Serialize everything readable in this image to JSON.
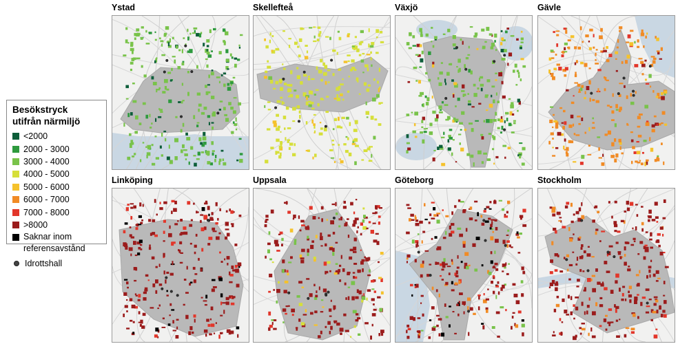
{
  "legend": {
    "title_line1": "Besökstryck",
    "title_line2": "utifrån närmiljö",
    "items": [
      {
        "label": "<2000",
        "color": "#0d5e3a"
      },
      {
        "label": "2000 - 3000",
        "color": "#2e9a3e"
      },
      {
        "label": "3000 - 4000",
        "color": "#79c34a"
      },
      {
        "label": "4000 - 5000",
        "color": "#d6df3a"
      },
      {
        "label": "5000 - 6000",
        "color": "#f5c22c"
      },
      {
        "label": "6000 - 7000",
        "color": "#f18b25"
      },
      {
        "label": "7000 - 8000",
        "color": "#e2362a"
      },
      {
        "label": ">8000",
        "color": "#9b1c1c"
      },
      {
        "label": "Saknar inom referensavstånd",
        "color": "#000000"
      }
    ],
    "point_label": "Idrottshall"
  },
  "maps": [
    {
      "id": "ystad",
      "title": "Ystad",
      "dominant": "#79c34a",
      "mix": [
        "#2e9a3e",
        "#0d5e3a",
        "#79c34a"
      ],
      "water": "bottom"
    },
    {
      "id": "skelleftea",
      "title": "Skellefteå",
      "dominant": "#d6df3a",
      "mix": [
        "#79c34a",
        "#f5c22c",
        "#d6df3a"
      ],
      "water": "none"
    },
    {
      "id": "vaxjo",
      "title": "Växjö",
      "dominant": "#79c34a",
      "mix": [
        "#2e9a3e",
        "#0d5e3a",
        "#9b1c1c",
        "#f5c22c"
      ],
      "water": "lakes"
    },
    {
      "id": "gavle",
      "title": "Gävle",
      "dominant": "#f18b25",
      "mix": [
        "#9b1c1c",
        "#f5c22c",
        "#e2362a",
        "#79c34a"
      ],
      "water": "right"
    },
    {
      "id": "linkoping",
      "title": "Linköping",
      "dominant": "#9b1c1c",
      "mix": [
        "#9b1c1c",
        "#e2362a",
        "#000000"
      ],
      "water": "none"
    },
    {
      "id": "uppsala",
      "title": "Uppsala",
      "dominant": "#9b1c1c",
      "mix": [
        "#f5c22c",
        "#d6df3a",
        "#e2362a",
        "#79c34a"
      ],
      "water": "none"
    },
    {
      "id": "goteborg",
      "title": "Göteborg",
      "dominant": "#9b1c1c",
      "mix": [
        "#e2362a",
        "#000000",
        "#79c34a",
        "#f18b25"
      ],
      "water": "left"
    },
    {
      "id": "stockholm",
      "title": "Stockholm",
      "dominant": "#9b1c1c",
      "mix": [
        "#e2362a",
        "#f18b25",
        "#9b1c1c"
      ],
      "water": "channels"
    }
  ]
}
